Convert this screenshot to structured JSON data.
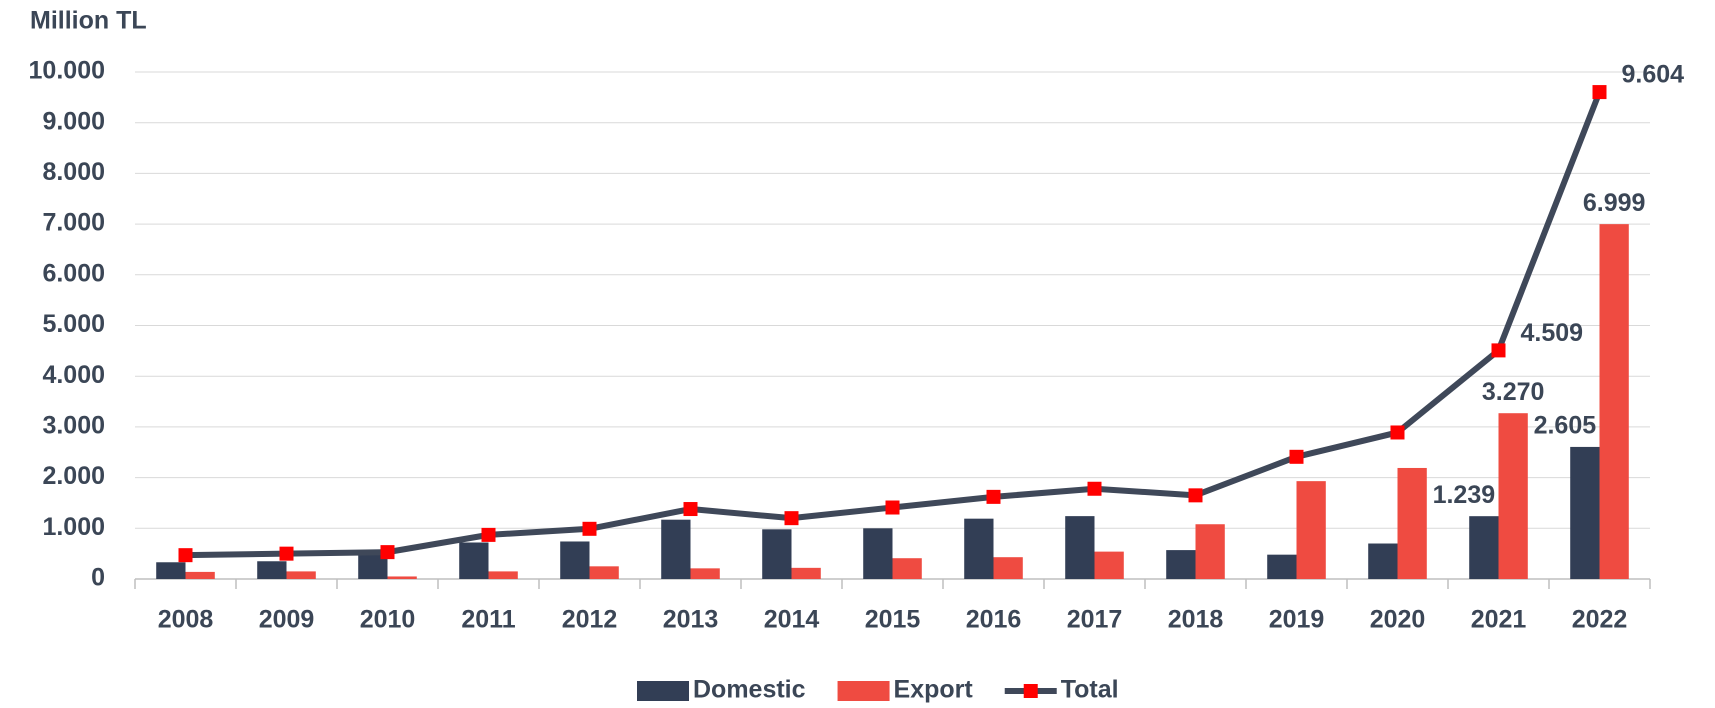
{
  "chart_data": {
    "type": "bar",
    "y_label": "Million TL",
    "categories": [
      "2008",
      "2009",
      "2010",
      "2011",
      "2012",
      "2013",
      "2014",
      "2015",
      "2016",
      "2017",
      "2018",
      "2019",
      "2020",
      "2021",
      "2022"
    ],
    "series": [
      {
        "name": "Domestic",
        "type": "bar",
        "color": "#323e55",
        "values": [
          330,
          350,
          480,
          720,
          740,
          1170,
          980,
          1000,
          1190,
          1240,
          570,
          480,
          700,
          1239,
          2605
        ],
        "value_labels": [
          null,
          null,
          null,
          null,
          null,
          null,
          null,
          null,
          null,
          null,
          null,
          null,
          null,
          "1.239",
          "2.605"
        ]
      },
      {
        "name": "Export",
        "type": "bar",
        "color": "#ef4b41",
        "values": [
          140,
          150,
          50,
          150,
          250,
          210,
          220,
          410,
          430,
          540,
          1080,
          1930,
          2190,
          3270,
          6999
        ],
        "value_labels": [
          null,
          null,
          null,
          null,
          null,
          null,
          null,
          null,
          null,
          null,
          null,
          null,
          null,
          "3.270",
          "6.999"
        ]
      },
      {
        "name": "Total",
        "type": "line",
        "color": "#3f4859",
        "marker_color": "#ff0000",
        "values": [
          470,
          500,
          530,
          870,
          990,
          1380,
          1200,
          1410,
          1620,
          1780,
          1650,
          2410,
          2890,
          4509,
          9604
        ],
        "value_labels": [
          null,
          null,
          null,
          null,
          null,
          null,
          null,
          null,
          null,
          null,
          null,
          null,
          null,
          "4.509",
          "9.604"
        ]
      }
    ],
    "ylim": [
      0,
      10000
    ],
    "yticks": [
      0,
      {
        "value": 1000,
        "label": "1.000"
      },
      {
        "value": 2000,
        "label": "2.000"
      },
      {
        "value": 3000,
        "label": "3.000"
      },
      {
        "value": 4000,
        "label": "4.000"
      },
      {
        "value": 5000,
        "label": "5.000"
      },
      {
        "value": 6000,
        "label": "6.000"
      },
      {
        "value": 7000,
        "label": "7.000"
      },
      {
        "value": 8000,
        "label": "8.000"
      },
      {
        "value": 9000,
        "label": "9.000"
      },
      {
        "value": 10000,
        "label": "10.000"
      }
    ],
    "grid": true,
    "legend": "bottom"
  }
}
